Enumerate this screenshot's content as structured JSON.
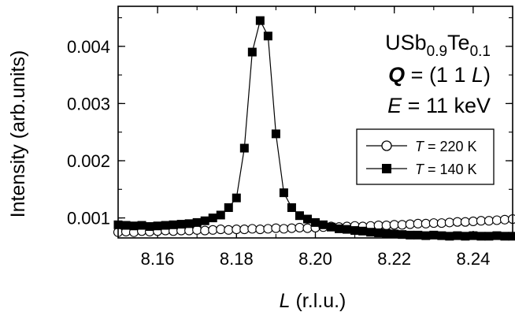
{
  "chart_data": {
    "type": "scatter",
    "xlabel_var": "L",
    "xlabel_unit": " (r.l.u.)",
    "ylabel": "Intensity (arb.units)",
    "xlim": [
      8.15,
      8.25
    ],
    "ylim": [
      0.00065,
      0.0047
    ],
    "x_ticks": [
      8.16,
      8.18,
      8.2,
      8.22,
      8.24
    ],
    "x_tick_labels": [
      "8.16",
      "8.18",
      "8.20",
      "8.22",
      "8.24"
    ],
    "y_ticks": [
      0.001,
      0.002,
      0.003,
      0.004
    ],
    "y_tick_labels": [
      "0.001",
      "0.002",
      "0.003",
      "0.004"
    ],
    "grid": false,
    "legend_position": "right",
    "annotations": {
      "compound": {
        "base1": "USb",
        "sub1": "0.9",
        "base2": "Te",
        "sub2": "0.1"
      },
      "q_var": "Q",
      "q_value": " = (1 1 ",
      "q_L": "L",
      "q_close": ")",
      "e_var": "E",
      "e_value": " = 11 keV"
    },
    "series": [
      {
        "legend_var": "T",
        "legend_text": " = 220 K",
        "marker": "open-circle",
        "connected": false,
        "x": [
          8.15,
          8.152,
          8.154,
          8.156,
          8.158,
          8.16,
          8.162,
          8.164,
          8.166,
          8.168,
          8.17,
          8.172,
          8.174,
          8.176,
          8.178,
          8.18,
          8.182,
          8.184,
          8.186,
          8.188,
          8.19,
          8.192,
          8.194,
          8.196,
          8.198,
          8.2,
          8.202,
          8.204,
          8.206,
          8.208,
          8.21,
          8.212,
          8.214,
          8.216,
          8.218,
          8.22,
          8.222,
          8.224,
          8.226,
          8.228,
          8.23,
          8.232,
          8.234,
          8.236,
          8.238,
          8.24,
          8.242,
          8.244,
          8.246,
          8.248,
          8.25
        ],
        "y": [
          0.00075,
          0.00076,
          0.00075,
          0.00077,
          0.00076,
          0.00077,
          0.00078,
          0.00077,
          0.00078,
          0.00078,
          0.00079,
          0.00078,
          0.00079,
          0.0008,
          0.00079,
          0.0008,
          0.0008,
          0.00081,
          0.0008,
          0.00081,
          0.00082,
          0.00081,
          0.00082,
          0.00083,
          0.00082,
          0.00083,
          0.00084,
          0.00085,
          0.00084,
          0.00085,
          0.00086,
          0.00085,
          0.00086,
          0.00087,
          0.00087,
          0.00088,
          0.00088,
          0.00089,
          0.0009,
          0.0009,
          0.00091,
          0.00091,
          0.00092,
          0.00093,
          0.00093,
          0.00094,
          0.00095,
          0.00095,
          0.00096,
          0.00097,
          0.00098
        ]
      },
      {
        "legend_var": "T",
        "legend_text": " = 140 K",
        "marker": "filled-square",
        "connected": true,
        "x": [
          8.15,
          8.152,
          8.154,
          8.156,
          8.158,
          8.16,
          8.162,
          8.164,
          8.166,
          8.168,
          8.17,
          8.172,
          8.174,
          8.176,
          8.178,
          8.18,
          8.182,
          8.184,
          8.186,
          8.188,
          8.19,
          8.192,
          8.194,
          8.196,
          8.198,
          8.2,
          8.202,
          8.204,
          8.206,
          8.208,
          8.21,
          8.212,
          8.214,
          8.216,
          8.218,
          8.22,
          8.222,
          8.224,
          8.226,
          8.228,
          8.23,
          8.232,
          8.234,
          8.236,
          8.238,
          8.24,
          8.242,
          8.244,
          8.246,
          8.248,
          8.25
        ],
        "y": [
          0.00088,
          0.00087,
          0.00086,
          0.00087,
          0.00085,
          0.00086,
          0.00087,
          0.00088,
          0.00089,
          0.0009,
          0.00092,
          0.00095,
          0.001,
          0.00105,
          0.00118,
          0.00135,
          0.00222,
          0.0039,
          0.00445,
          0.00418,
          0.00247,
          0.00144,
          0.00118,
          0.00104,
          0.00098,
          0.00092,
          0.00088,
          0.00084,
          0.00081,
          0.0008,
          0.00078,
          0.00077,
          0.00075,
          0.00074,
          0.00073,
          0.00072,
          0.00071,
          0.0007,
          0.0007,
          0.00069,
          0.0007,
          0.00069,
          0.00068,
          0.00069,
          0.00068,
          0.00069,
          0.00068,
          0.00068,
          0.00069,
          0.00068,
          0.00068
        ]
      }
    ]
  }
}
